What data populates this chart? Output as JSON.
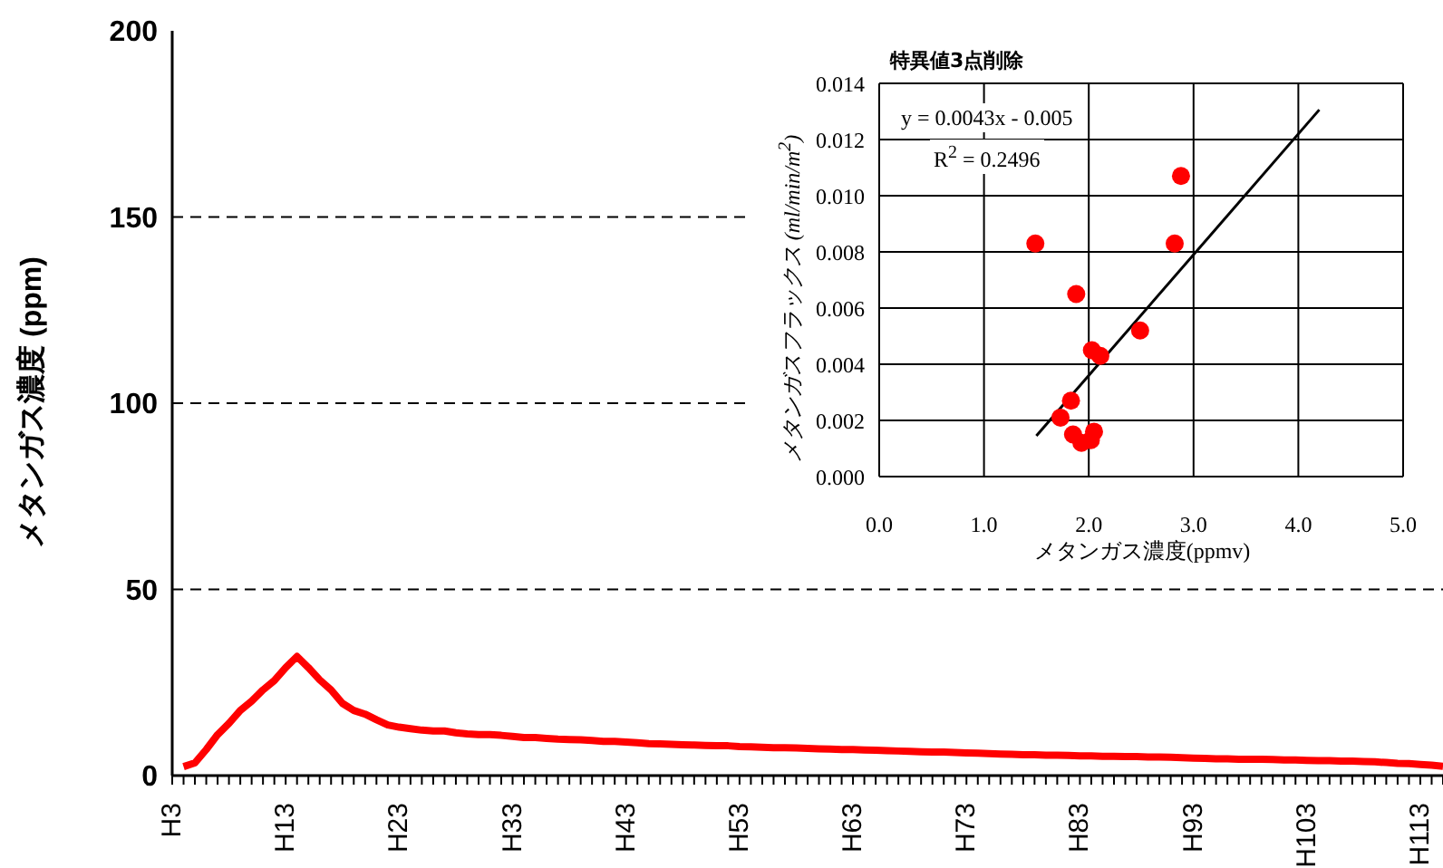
{
  "chart_data": [
    {
      "type": "line",
      "ylabel": "メタンガス濃度 (ppm)",
      "categories": [
        "H3",
        null,
        null,
        null,
        null,
        null,
        null,
        null,
        null,
        null,
        "H13",
        null,
        null,
        null,
        null,
        null,
        null,
        null,
        null,
        null,
        "H23",
        null,
        null,
        null,
        null,
        null,
        null,
        null,
        null,
        null,
        "H33",
        null,
        null,
        null,
        null,
        null,
        null,
        null,
        null,
        null,
        "H43",
        null,
        null,
        null,
        null,
        null,
        null,
        null,
        null,
        null,
        "H53",
        null,
        null,
        null,
        null,
        null,
        null,
        null,
        null,
        null,
        "H63",
        null,
        null,
        null,
        null,
        null,
        null,
        null,
        null,
        null,
        "H73",
        null,
        null,
        null,
        null,
        null,
        null,
        null,
        null,
        null,
        "H83",
        null,
        null,
        null,
        null,
        null,
        null,
        null,
        null,
        null,
        "H93",
        null,
        null,
        null,
        null,
        null,
        null,
        null,
        null,
        null,
        "H103",
        null,
        null,
        null,
        null,
        null,
        null,
        null,
        null,
        null,
        "H113",
        null,
        null
      ],
      "series": [
        {
          "color": "#ff0000",
          "values": [
            null,
            2.4,
            3.4,
            7,
            11,
            14,
            17.5,
            20,
            23,
            25.5,
            29,
            32,
            29,
            25.7,
            23,
            19.4,
            17.5,
            16.5,
            15,
            13.6,
            13,
            12.6,
            12.2,
            12,
            12,
            11.5,
            11.2,
            11,
            11,
            10.8,
            10.5,
            10.2,
            10.2,
            10,
            9.8,
            9.7,
            9.6,
            9.4,
            9.2,
            9.2,
            9,
            8.8,
            8.6,
            8.5,
            8.4,
            8.3,
            8.2,
            8.1,
            8,
            8,
            7.8,
            7.7,
            7.6,
            7.5,
            7.5,
            7.4,
            7.3,
            7.2,
            7.1,
            7,
            7,
            6.9,
            6.8,
            6.7,
            6.6,
            6.5,
            6.4,
            6.3,
            6.3,
            6.2,
            6.1,
            6,
            5.9,
            5.8,
            5.7,
            5.6,
            5.6,
            5.5,
            5.5,
            5.4,
            5.3,
            5.3,
            5.2,
            5.2,
            5.1,
            5.1,
            5,
            5,
            4.9,
            4.8,
            4.7,
            4.6,
            4.5,
            4.5,
            4.4,
            4.4,
            4.4,
            4.3,
            4.2,
            4.2,
            4.1,
            4,
            4,
            3.9,
            3.9,
            3.8,
            3.7,
            3.5,
            3.3,
            3.2,
            3,
            2.8,
            2.5
          ]
        }
      ],
      "ylim": [
        0,
        200
      ],
      "yticks": [
        0,
        50,
        100,
        150,
        200
      ],
      "grid": "y",
      "line_style": "solid",
      "marker": "none"
    },
    {
      "type": "scatter",
      "title": "特異値3点削除",
      "xlabel": "メタンガス濃度(ppmv)",
      "ylabel": "メタンガスフラックス (ml/min/m$^{2}$)",
      "annotations": [
        "y = 0.0043x - 0.005",
        "R$^{2}$ = 0.2496"
      ],
      "series": [
        {
          "color": "#ff0000",
          "marker": "circle",
          "x": [
            1.49,
            1.88,
            2.88,
            2.82,
            2.49,
            2.03,
            2.11,
            1.83,
            1.73,
            1.85,
            1.93,
            2.05,
            2.02
          ],
          "values": [
            0.0083,
            0.0065,
            0.0107,
            0.0083,
            0.0052,
            0.0045,
            0.0043,
            0.0027,
            0.0021,
            0.0015,
            0.0012,
            0.0016,
            0.0013
          ]
        },
        {
          "type": "line",
          "color": "#000000",
          "x": [
            1.5,
            4.2
          ],
          "values": [
            0.00145,
            0.01306
          ]
        }
      ],
      "xlim": [
        0,
        5
      ],
      "xticks": [
        {
          "value": 0,
          "label": "0.0"
        },
        {
          "value": 1,
          "label": "1.0"
        },
        {
          "value": 2,
          "label": "2.0"
        },
        {
          "value": 3,
          "label": "3.0"
        },
        {
          "value": 4,
          "label": "4.0"
        },
        {
          "value": 5,
          "label": "5.0"
        }
      ],
      "ylim": [
        0,
        0.014
      ],
      "yticks": [
        {
          "value": 0,
          "label": "0.000"
        },
        {
          "value": 0.002,
          "label": "0.002"
        },
        {
          "value": 0.004,
          "label": "0.004"
        },
        {
          "value": 0.006,
          "label": "0.006"
        },
        {
          "value": 0.008,
          "label": "0.008"
        },
        {
          "value": 0.01,
          "label": "0.010"
        },
        {
          "value": 0.012,
          "label": "0.012"
        },
        {
          "value": 0.014,
          "label": "0.014"
        }
      ],
      "grid": true
    }
  ]
}
